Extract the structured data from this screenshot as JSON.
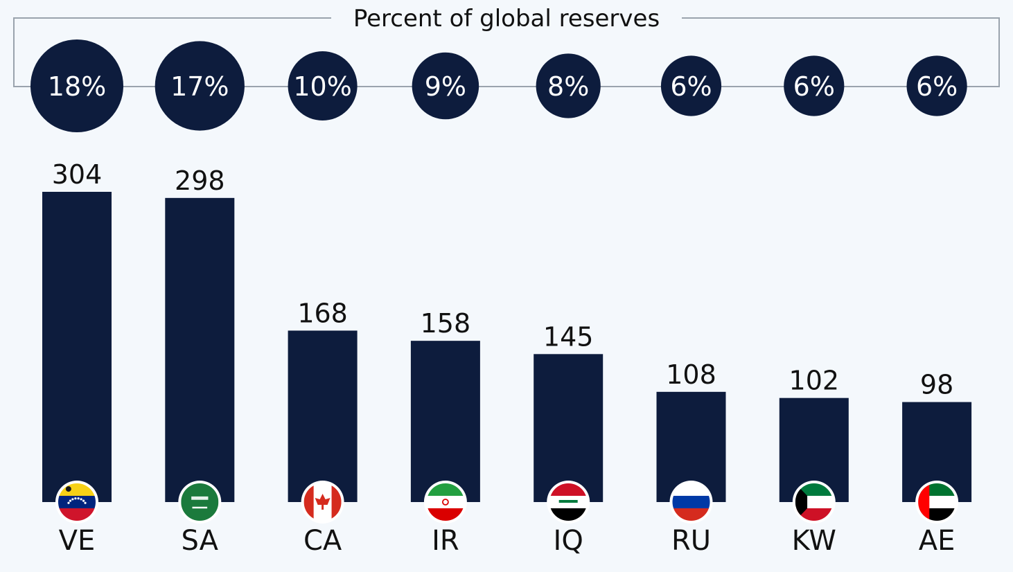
{
  "chart_data": {
    "type": "bar",
    "title": "Percent of global reserves",
    "categories": [
      "VE",
      "SA",
      "CA",
      "IR",
      "IQ",
      "RU",
      "KW",
      "AE"
    ],
    "values": [
      304,
      298,
      168,
      158,
      145,
      108,
      102,
      98
    ],
    "percent_labels": [
      "18%",
      "17%",
      "10%",
      "9%",
      "8%",
      "6%",
      "6%",
      "6%"
    ],
    "percent_values": [
      18,
      17,
      10,
      9,
      8,
      6,
      6,
      6
    ],
    "flags": [
      "venezuela-flag",
      "saudi-arabia-flag",
      "canada-flag",
      "iran-flag",
      "iraq-flag",
      "russia-flag",
      "kuwait-flag",
      "uae-flag"
    ],
    "xlabel": "",
    "ylabel": "",
    "ylim": [
      0,
      304
    ],
    "grid": false,
    "colors": {
      "bar": "#0d1c3d",
      "bubble": "#0d1c3d",
      "frame": "#9aa3ad",
      "background": "#f4f8fc"
    }
  }
}
